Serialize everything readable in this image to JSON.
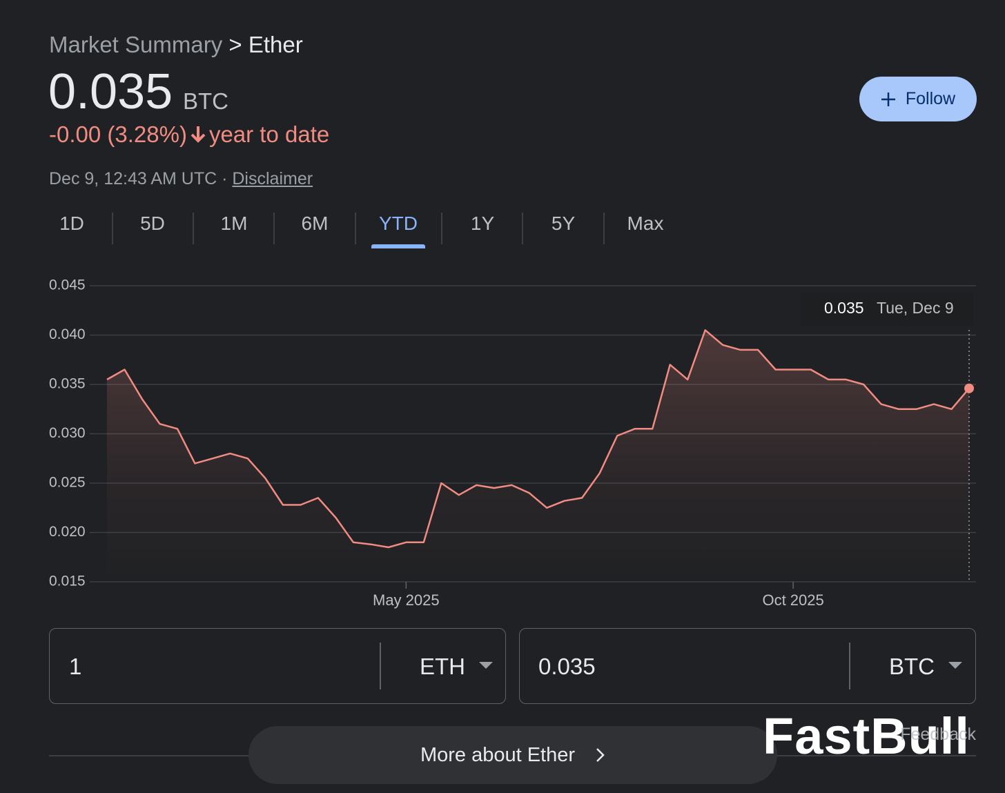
{
  "header": {
    "breadcrumb": "Market Summary",
    "separator": ">",
    "title": "Ether"
  },
  "price": {
    "value": "0.035",
    "unit": "BTC"
  },
  "change": {
    "text": "-0.00 (3.28%)",
    "period": "year to date"
  },
  "timestamp": "Dec 9, 12:43 AM UTC",
  "disclaimer": "Disclaimer",
  "follow": "Follow",
  "tabs": {
    "items": [
      "1D",
      "5D",
      "1M",
      "6M",
      "YTD",
      "1Y",
      "5Y",
      "Max"
    ],
    "active": 4
  },
  "chart_data": {
    "type": "line",
    "categories": [
      null,
      null,
      null,
      null,
      null,
      null,
      null,
      null,
      null,
      null,
      null,
      null,
      null,
      null,
      null,
      null,
      null,
      "May 2025",
      null,
      null,
      null,
      null,
      null,
      null,
      null,
      null,
      null,
      null,
      null,
      null,
      null,
      null,
      null,
      null,
      null,
      null,
      null,
      null,
      null,
      "Oct 2025",
      null,
      null,
      null,
      null,
      null,
      null,
      null,
      null,
      null,
      null
    ],
    "values": [
      0.0355,
      0.0365,
      0.0335,
      0.031,
      0.0305,
      0.027,
      0.0275,
      0.028,
      0.0275,
      0.0255,
      0.0228,
      0.0228,
      0.0235,
      0.0215,
      0.019,
      0.0188,
      0.0185,
      0.019,
      0.019,
      0.025,
      0.0238,
      0.0248,
      0.0245,
      0.0248,
      0.024,
      0.0225,
      0.0232,
      0.0235,
      0.026,
      0.0298,
      0.0305,
      0.0305,
      0.037,
      0.0355,
      0.0405,
      0.039,
      0.0385,
      0.0385,
      0.0365,
      0.0365,
      0.0365,
      0.0355,
      0.0355,
      0.035,
      0.033,
      0.0325,
      0.0325,
      0.033,
      0.0325,
      0.0346
    ],
    "color": "#f28b82",
    "ylim": [
      0.015,
      0.045
    ],
    "yticks": [
      0.015,
      {
        "value": 0.02,
        "label": "0.020"
      },
      0.025,
      {
        "value": 0.03,
        "label": "0.030"
      },
      0.035,
      {
        "value": 0.04,
        "label": "0.040"
      },
      0.045
    ],
    "grid": true,
    "tooltip": {
      "value": "0.035",
      "date": "Tue, Dec 9"
    }
  },
  "converter": {
    "from_amount": "1",
    "from_unit": "ETH",
    "to_amount": "0.035",
    "to_unit": "BTC"
  },
  "more": "More about Ether",
  "feedback": "Feedback",
  "watermark": "FastBull"
}
